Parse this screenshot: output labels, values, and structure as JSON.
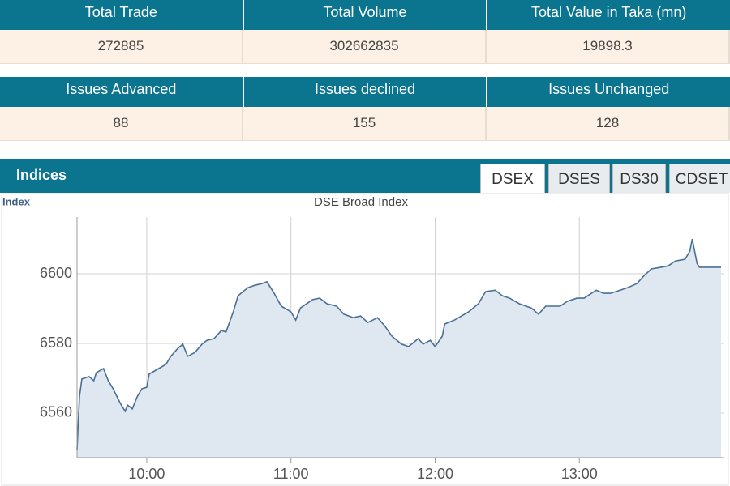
{
  "stats": {
    "headers": [
      "Total Trade",
      "Total Volume",
      "Total Value in Taka (mn)"
    ],
    "values": [
      272885,
      302662835,
      19898.3
    ]
  },
  "issues": {
    "headers": [
      "Issues Advanced",
      "Issues declined",
      "Issues Unchanged"
    ],
    "values": [
      88,
      155,
      128
    ]
  },
  "indices": {
    "title": "Indices",
    "tabs": [
      "DSEX",
      "DSES",
      "DS30",
      "CDSET"
    ]
  },
  "chart_data": {
    "type": "line",
    "title": "DSE Broad Index",
    "y_label": "Index",
    "color": "#4a6f94",
    "area_color": "#dfe7f0",
    "grid": true,
    "xlim": [
      571,
      840
    ],
    "ylim": [
      6547.2,
      6616.3
    ],
    "yticks": [
      6560,
      6580,
      6600
    ],
    "xticks": [
      {
        "value": 600,
        "label": "10:00"
      },
      {
        "value": 660,
        "label": "11:00"
      },
      {
        "value": 720,
        "label": "12:00"
      },
      {
        "value": 780,
        "label": "13:00"
      }
    ],
    "x": [
      571,
      572,
      573,
      576,
      578,
      579,
      582,
      584,
      586,
      589,
      591,
      592,
      594,
      596,
      598,
      600,
      601,
      605,
      608,
      610,
      613,
      615,
      617,
      620,
      623,
      625,
      628,
      631,
      633,
      636,
      638,
      642,
      645,
      648,
      650,
      653,
      656,
      660,
      662,
      664,
      669,
      672,
      675,
      679,
      682,
      686,
      689,
      692,
      696,
      699,
      702,
      706,
      709,
      713,
      715,
      718,
      720,
      723,
      724,
      728,
      731,
      734,
      738,
      741,
      745,
      748,
      751,
      755,
      760,
      763,
      766,
      772,
      775,
      779,
      782,
      787,
      790,
      793,
      797,
      800,
      804,
      807,
      810,
      814,
      817,
      820,
      824,
      826,
      827,
      829,
      830,
      839
    ],
    "values": [
      6549.5,
      6564.7,
      6569.8,
      6570.5,
      6569.3,
      6571.6,
      6572.8,
      6569.3,
      6567.0,
      6562.8,
      6560.5,
      6562.3,
      6561.2,
      6564.7,
      6567.0,
      6567.4,
      6571.2,
      6572.8,
      6574.0,
      6576.3,
      6578.6,
      6579.8,
      6576.3,
      6577.4,
      6579.8,
      6580.9,
      6581.4,
      6583.7,
      6583.3,
      6589.1,
      6593.7,
      6596.0,
      6596.7,
      6597.2,
      6597.7,
      6594.4,
      6590.7,
      6589.1,
      6586.7,
      6590.2,
      6592.6,
      6593.0,
      6591.4,
      6590.7,
      6588.4,
      6587.4,
      6587.9,
      6586.0,
      6587.4,
      6585.1,
      6582.1,
      6579.8,
      6579.1,
      6581.4,
      6579.8,
      6580.9,
      6579.1,
      6582.1,
      6585.6,
      6586.7,
      6587.9,
      6589.1,
      6591.4,
      6594.9,
      6595.3,
      6593.7,
      6593.0,
      6591.4,
      6590.2,
      6588.4,
      6590.7,
      6590.7,
      6592.1,
      6593.0,
      6593.0,
      6595.3,
      6594.4,
      6594.4,
      6595.3,
      6596.0,
      6597.2,
      6599.5,
      6601.4,
      6601.9,
      6602.3,
      6603.7,
      6604.2,
      6606.5,
      6610.0,
      6603.0,
      6601.9,
      6601.9
    ]
  }
}
